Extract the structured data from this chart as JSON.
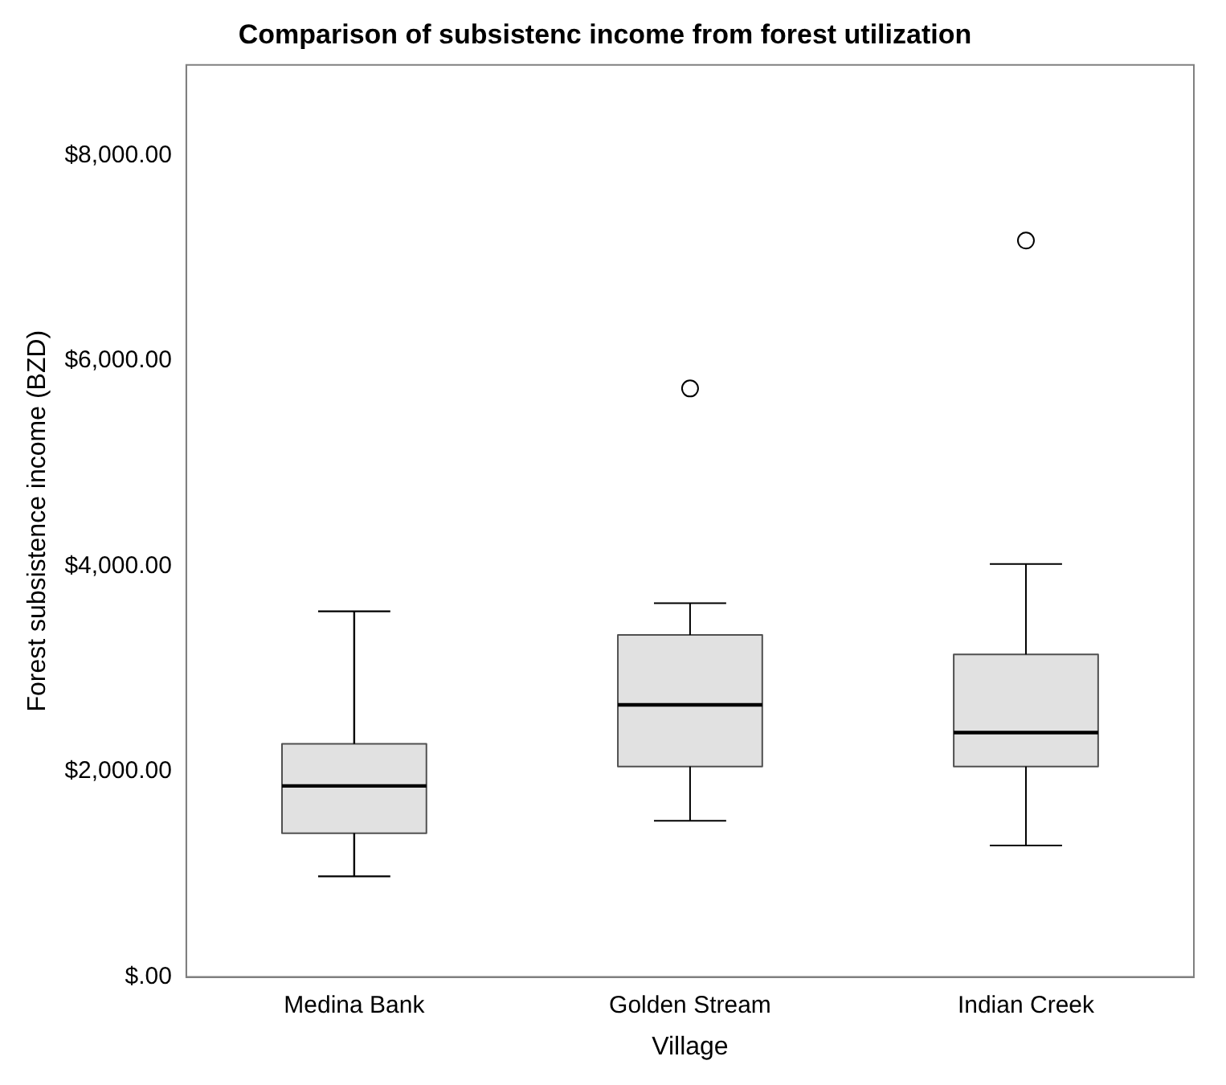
{
  "chart_data": {
    "type": "box",
    "title": "Comparison of subsistenc income from forest utilization",
    "xlabel": "Village",
    "ylabel": "Forest subsistence income (BZD)",
    "categories": [
      "Medina Bank",
      "Golden Stream",
      "Indian Creek"
    ],
    "color": "#e1e1e1",
    "boxes": [
      {
        "low": 980,
        "q1": 1400,
        "median": 1860,
        "q3": 2270,
        "high": 3560
      },
      {
        "low": 1520,
        "q1": 2050,
        "median": 2650,
        "q3": 3330,
        "high": 3640,
        "outliers": [
          5730
        ]
      },
      {
        "low": 1280,
        "q1": 2050,
        "median": 2380,
        "q3": 3140,
        "high": 4020,
        "outliers": [
          7170
        ]
      }
    ],
    "ylim": [
      0,
      8880
    ],
    "yticks": [
      {
        "value": 0,
        "label": "$.00"
      },
      {
        "value": 2000,
        "label": "$2,000.00"
      },
      {
        "value": 4000,
        "label": "$4,000.00"
      },
      {
        "value": 6000,
        "label": "$6,000.00"
      },
      {
        "value": 8000,
        "label": "$8,000.00"
      }
    ],
    "grid": false,
    "legend": false
  }
}
